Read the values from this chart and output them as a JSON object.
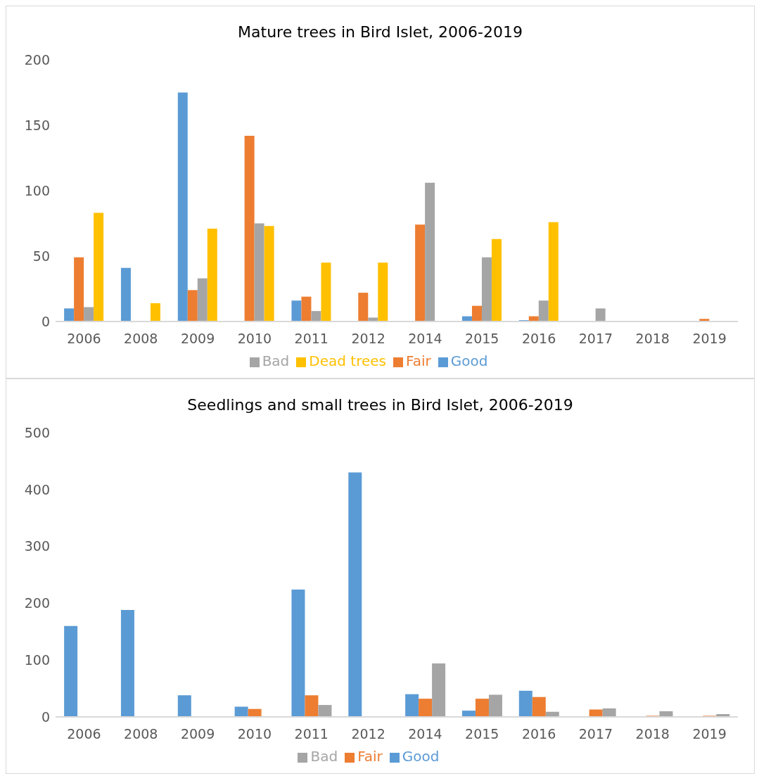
{
  "chart_data": [
    {
      "type": "bar",
      "title": "Mature trees in Bird Islet, 2006-2019",
      "categories": [
        "2006",
        "2008",
        "2009",
        "2010",
        "2011",
        "2012",
        "2014",
        "2015",
        "2016",
        "2017",
        "2018",
        "2019"
      ],
      "series": [
        {
          "name": "Good",
          "color": "#5b9bd5",
          "values": [
            10,
            41,
            175,
            null,
            16,
            null,
            null,
            4,
            1,
            null,
            null,
            null
          ]
        },
        {
          "name": "Fair",
          "color": "#ed7d31",
          "values": [
            49,
            null,
            24,
            142,
            19,
            22,
            74,
            12,
            4,
            null,
            null,
            2
          ]
        },
        {
          "name": "Bad",
          "color": "#a5a5a5",
          "values": [
            11,
            null,
            33,
            75,
            8,
            3,
            106,
            49,
            16,
            10,
            null,
            null
          ]
        },
        {
          "name": "Dead trees",
          "color": "#ffc000",
          "values": [
            83,
            14,
            71,
            73,
            45,
            45,
            null,
            63,
            76,
            null,
            null,
            null
          ]
        }
      ],
      "ylim": [
        0,
        200
      ],
      "yticks": [
        0,
        50,
        100,
        150,
        200
      ],
      "grid": false,
      "legend": "bottom"
    },
    {
      "type": "bar",
      "title": "Seedlings and small trees in Bird Islet, 2006-2019",
      "categories": [
        "2006",
        "2008",
        "2009",
        "2010",
        "2011",
        "2012",
        "2014",
        "2015",
        "2016",
        "2017",
        "2018",
        "2019"
      ],
      "series": [
        {
          "name": "Good",
          "color": "#5b9bd5",
          "values": [
            160,
            188,
            38,
            18,
            224,
            430,
            40,
            11,
            46,
            null,
            null,
            null
          ]
        },
        {
          "name": "Fair",
          "color": "#ed7d31",
          "values": [
            null,
            null,
            null,
            14,
            38,
            null,
            32,
            32,
            35,
            13,
            2,
            2
          ]
        },
        {
          "name": "Bad",
          "color": "#a5a5a5",
          "values": [
            null,
            null,
            null,
            null,
            21,
            null,
            94,
            39,
            9,
            15,
            10,
            5
          ]
        }
      ],
      "ylim": [
        0,
        500
      ],
      "yticks": [
        0,
        100,
        200,
        300,
        400,
        500
      ],
      "grid": false,
      "legend": "bottom"
    }
  ]
}
